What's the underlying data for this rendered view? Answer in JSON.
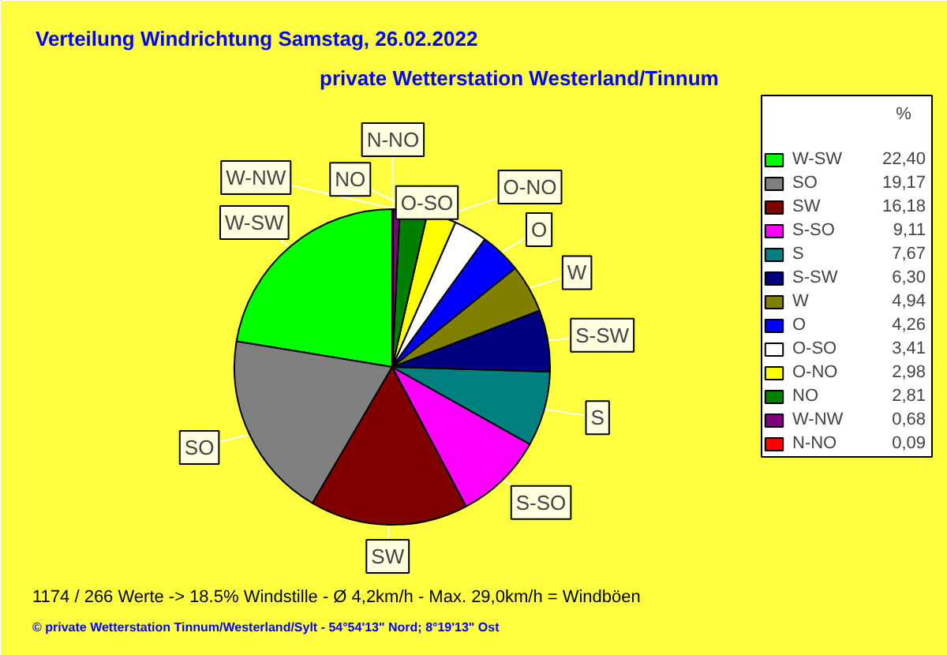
{
  "chart_data": {
    "type": "pie",
    "title": "Verteilung Windrichtung   Samstag, 26.02.2022",
    "subtitle": "private Wetterstation Westerland/Tinnum",
    "legend_title": "%",
    "legend": "right",
    "categories": [
      "W-SW",
      "SO",
      "SW",
      "S-SO",
      "S",
      "S-SW",
      "W",
      "O",
      "O-SO",
      "O-NO",
      "NO",
      "W-NW",
      "N-NO"
    ],
    "values": [
      22.4,
      19.17,
      16.18,
      9.11,
      7.67,
      6.3,
      4.94,
      4.26,
      3.41,
      2.98,
      2.81,
      0.68,
      0.09
    ],
    "value_labels": [
      "22,40",
      "19,17",
      "16,18",
      "9,11",
      "7,67",
      "6,30",
      "4,94",
      "4,26",
      "3,41",
      "2,98",
      "2,81",
      "0,68",
      "0,09"
    ],
    "colors": [
      "#00ff00",
      "#808080",
      "#800000",
      "#ff00ff",
      "#008080",
      "#000080",
      "#808000",
      "#0000ff",
      "#ffffff",
      "#ffff00",
      "#008000",
      "#800080",
      "#ff0000"
    ],
    "annotations": [
      "1174 / 266 Werte  -> 18.5% Windstille   -   Ø 4,2km/h  -  Max. 29,0km/h = Windböen",
      "© private Wetterstation Tinnum/Westerland/Sylt  -  54°54'13\" Nord; 8°19'13\" Ost"
    ]
  }
}
